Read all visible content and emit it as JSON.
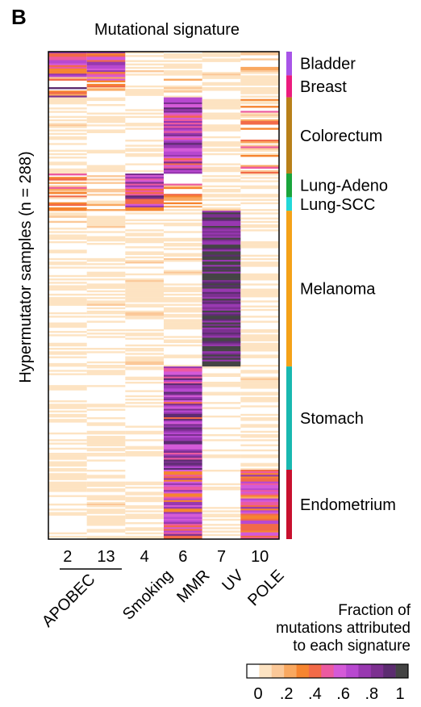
{
  "panel_label": "B",
  "chart_data": {
    "type": "heatmap",
    "title": "Mutational signature",
    "ylabel": "Hypermutator samples (n = 288)",
    "columns": [
      {
        "signature": "2",
        "name": "APOBEC"
      },
      {
        "signature": "13",
        "name": "APOBEC"
      },
      {
        "signature": "4",
        "name": "Smoking"
      },
      {
        "signature": "6",
        "name": "MMR"
      },
      {
        "signature": "7",
        "name": "UV"
      },
      {
        "signature": "10",
        "name": "POLE"
      }
    ],
    "group_labels": [
      "APOBEC",
      "Smoking",
      "MMR",
      "UV",
      "POLE"
    ],
    "n_samples": 288,
    "tissues": [
      {
        "name": "Bladder",
        "color": "#a855e8",
        "n": 14
      },
      {
        "name": "Breast",
        "color": "#ec1c7e",
        "n": 13
      },
      {
        "name": "Colorectum",
        "color": "#b8801a",
        "n": 45
      },
      {
        "name": "Lung-Adeno",
        "color": "#1aa53c",
        "n": 14
      },
      {
        "name": "Lung-SCC",
        "color": "#22d8d8",
        "n": 8
      },
      {
        "name": "Melanoma",
        "color": "#f4a219",
        "n": 92
      },
      {
        "name": "Stomach",
        "color": "#19b8b0",
        "n": 61
      },
      {
        "name": "Endometrium",
        "color": "#c8102e",
        "n": 41
      }
    ],
    "typical_fraction": {
      "Bladder": [
        0.55,
        0.5,
        0.05,
        0.05,
        0.05,
        0.1
      ],
      "Breast": [
        0.35,
        0.25,
        0.05,
        0.1,
        0.05,
        0.05
      ],
      "Colorectum": [
        0.05,
        0.05,
        0.03,
        0.65,
        0.05,
        0.2
      ],
      "Lung-Adeno": [
        0.2,
        0.1,
        0.65,
        0.2,
        0.05,
        0.05
      ],
      "Lung-SCC": [
        0.15,
        0.1,
        0.6,
        0.15,
        0.05,
        0.05
      ],
      "Melanoma": [
        0.05,
        0.05,
        0.05,
        0.05,
        0.95,
        0.05
      ],
      "Stomach": [
        0.03,
        0.03,
        0.03,
        0.7,
        0.02,
        0.05
      ],
      "Endometrium": [
        0.05,
        0.05,
        0.03,
        0.55,
        0.02,
        0.5
      ]
    },
    "colorbar": {
      "title": [
        "Fraction of",
        "mutations attributed",
        "to each signature"
      ],
      "ticks": [
        "0",
        ".2",
        ".4",
        ".6",
        ".8",
        "1"
      ],
      "range": [
        0,
        1
      ],
      "colors": [
        "#ffffff",
        "#fde3c2",
        "#fbc898",
        "#f9a860",
        "#f68530",
        "#f26a48",
        "#ec5aa0",
        "#d45ad8",
        "#b848d0",
        "#9838b0",
        "#7c3090",
        "#5c2c70",
        "#444444"
      ]
    }
  }
}
